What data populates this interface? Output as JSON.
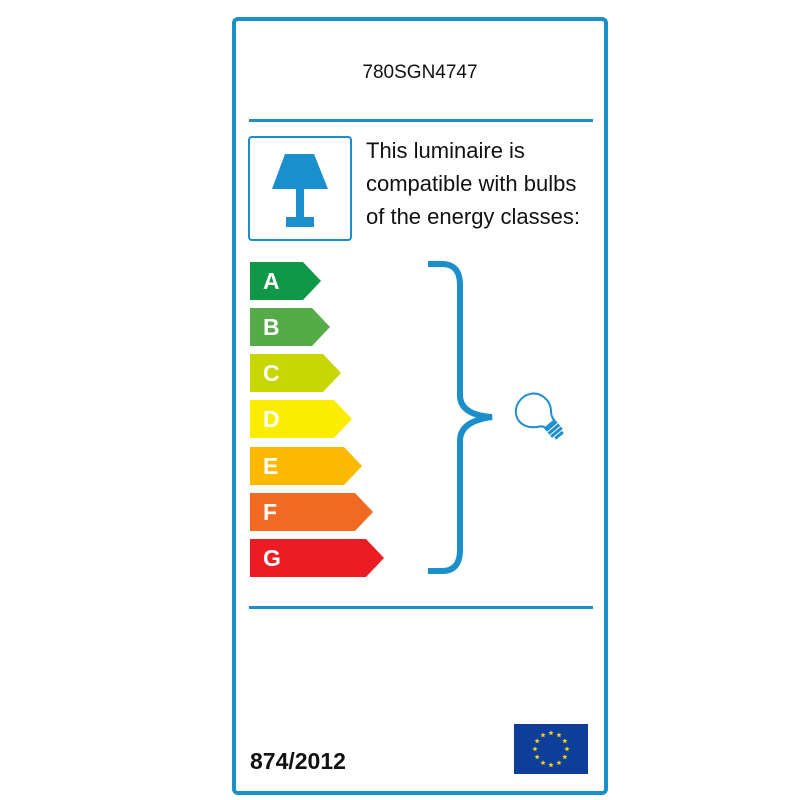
{
  "product_code": "780SGN4747",
  "intro_lines": [
    "This luminaire is",
    "compatible with bulbs",
    "of the energy classes:"
  ],
  "energy_classes": [
    {
      "label": "A",
      "color": "#109747"
    },
    {
      "label": "B",
      "color": "#55ab47"
    },
    {
      "label": "C",
      "color": "#c7d600"
    },
    {
      "label": "D",
      "color": "#fcec00"
    },
    {
      "label": "E",
      "color": "#fcb900"
    },
    {
      "label": "F",
      "color": "#f26a22"
    },
    {
      "label": "G",
      "color": "#ec1c24"
    }
  ],
  "regulation": "874/2012",
  "accent_color": "#1a8fcb",
  "icons": [
    "lamp-icon",
    "light-bulb-icon",
    "eu-flag-icon",
    "brace-icon"
  ]
}
